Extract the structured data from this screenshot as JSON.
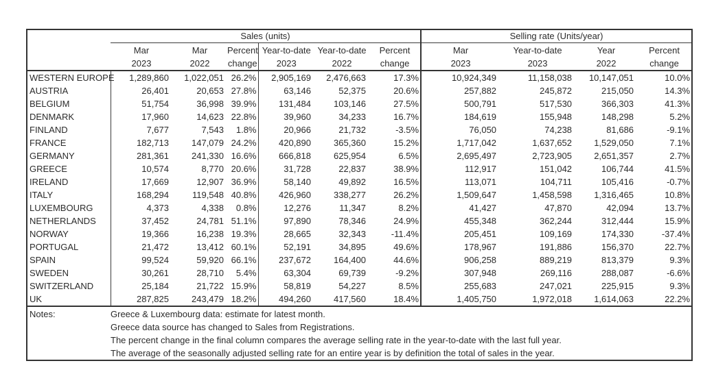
{
  "table": {
    "section_headers": [
      "Sales (units)",
      "Selling rate (Units/year)"
    ],
    "columns": [
      {
        "line1": "Mar",
        "line2": "2023"
      },
      {
        "line1": "Mar",
        "line2": "2022"
      },
      {
        "line1": "Percent",
        "line2": "change"
      },
      {
        "line1": "Year-to-date",
        "line2": "2023"
      },
      {
        "line1": "Year-to-date",
        "line2": "2022"
      },
      {
        "line1": "Percent",
        "line2": "change"
      },
      {
        "line1": "Mar",
        "line2": "2023"
      },
      {
        "line1": "Year-to-date",
        "line2": "2023"
      },
      {
        "line1": "Year",
        "line2": "2022"
      },
      {
        "line1": "Percent",
        "line2": "change"
      }
    ],
    "rows": [
      {
        "country": "WESTERN EUROPE",
        "values": [
          "1,289,860",
          "1,022,051",
          "26.2%",
          "2,905,169",
          "2,476,663",
          "17.3%",
          "10,924,349",
          "11,158,038",
          "10,147,051",
          "10.0%"
        ]
      },
      {
        "country": "AUSTRIA",
        "values": [
          "26,401",
          "20,653",
          "27.8%",
          "63,146",
          "52,375",
          "20.6%",
          "257,882",
          "245,872",
          "215,050",
          "14.3%"
        ]
      },
      {
        "country": "BELGIUM",
        "values": [
          "51,754",
          "36,998",
          "39.9%",
          "131,484",
          "103,146",
          "27.5%",
          "500,791",
          "517,530",
          "366,303",
          "41.3%"
        ]
      },
      {
        "country": "DENMARK",
        "values": [
          "17,960",
          "14,623",
          "22.8%",
          "39,960",
          "34,233",
          "16.7%",
          "184,619",
          "155,948",
          "148,298",
          "5.2%"
        ]
      },
      {
        "country": "FINLAND",
        "values": [
          "7,677",
          "7,543",
          "1.8%",
          "20,966",
          "21,732",
          "-3.5%",
          "76,050",
          "74,238",
          "81,686",
          "-9.1%"
        ]
      },
      {
        "country": "FRANCE",
        "values": [
          "182,713",
          "147,079",
          "24.2%",
          "420,890",
          "365,360",
          "15.2%",
          "1,717,042",
          "1,637,652",
          "1,529,050",
          "7.1%"
        ]
      },
      {
        "country": "GERMANY",
        "values": [
          "281,361",
          "241,330",
          "16.6%",
          "666,818",
          "625,954",
          "6.5%",
          "2,695,497",
          "2,723,905",
          "2,651,357",
          "2.7%"
        ]
      },
      {
        "country": "GREECE",
        "values": [
          "10,574",
          "8,770",
          "20.6%",
          "31,728",
          "22,837",
          "38.9%",
          "112,917",
          "151,042",
          "106,744",
          "41.5%"
        ]
      },
      {
        "country": "IRELAND",
        "values": [
          "17,669",
          "12,907",
          "36.9%",
          "58,140",
          "49,892",
          "16.5%",
          "113,071",
          "104,711",
          "105,416",
          "-0.7%"
        ]
      },
      {
        "country": "ITALY",
        "values": [
          "168,294",
          "119,548",
          "40.8%",
          "426,960",
          "338,277",
          "26.2%",
          "1,509,647",
          "1,458,598",
          "1,316,465",
          "10.8%"
        ]
      },
      {
        "country": "LUXEMBOURG",
        "values": [
          "4,373",
          "4,338",
          "0.8%",
          "12,276",
          "11,347",
          "8.2%",
          "41,427",
          "47,870",
          "42,094",
          "13.7%"
        ]
      },
      {
        "country": "NETHERLANDS",
        "values": [
          "37,452",
          "24,781",
          "51.1%",
          "97,890",
          "78,346",
          "24.9%",
          "455,348",
          "362,244",
          "312,444",
          "15.9%"
        ]
      },
      {
        "country": "NORWAY",
        "values": [
          "19,366",
          "16,238",
          "19.3%",
          "28,665",
          "32,343",
          "-11.4%",
          "205,451",
          "109,169",
          "174,330",
          "-37.4%"
        ]
      },
      {
        "country": "PORTUGAL",
        "values": [
          "21,472",
          "13,412",
          "60.1%",
          "52,191",
          "34,895",
          "49.6%",
          "178,967",
          "191,886",
          "156,370",
          "22.7%"
        ]
      },
      {
        "country": "SPAIN",
        "values": [
          "99,524",
          "59,920",
          "66.1%",
          "237,672",
          "164,400",
          "44.6%",
          "906,258",
          "889,219",
          "813,379",
          "9.3%"
        ]
      },
      {
        "country": "SWEDEN",
        "values": [
          "30,261",
          "28,710",
          "5.4%",
          "63,304",
          "69,739",
          "-9.2%",
          "307,948",
          "269,116",
          "288,087",
          "-6.6%"
        ]
      },
      {
        "country": "SWITZERLAND",
        "values": [
          "25,184",
          "21,722",
          "15.9%",
          "58,819",
          "54,227",
          "8.5%",
          "255,683",
          "247,021",
          "225,915",
          "9.3%"
        ]
      },
      {
        "country": "UK",
        "values": [
          "287,825",
          "243,479",
          "18.2%",
          "494,260",
          "417,560",
          "18.4%",
          "1,405,750",
          "1,972,018",
          "1,614,063",
          "22.2%"
        ]
      }
    ],
    "notes_label": "Notes:",
    "notes": [
      "Greece & Luxembourg data: estimate for latest month.",
      "Greece data source has changed to Sales from Registrations.",
      "The percent change in the final column compares the average selling rate in the year-to-date with the last full year.",
      "The average of the seasonally adjusted selling rate for an entire year is by definition the total of sales in the year."
    ]
  }
}
